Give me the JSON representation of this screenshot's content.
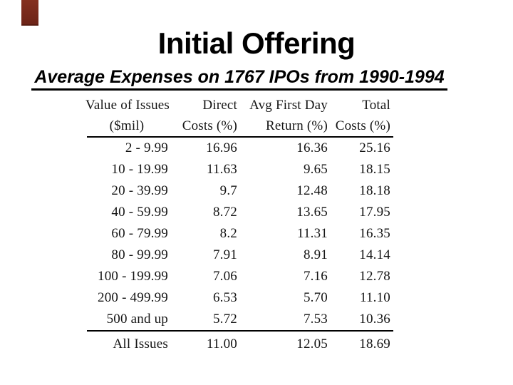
{
  "colors": {
    "background": "#ffffff",
    "accent_red": "#7b2a1c",
    "text": "#000000"
  },
  "slide": {
    "title": "Initial Offering",
    "subtitle": "Average Expenses on 1767 IPOs from 1990-1994"
  },
  "table": {
    "headers": [
      {
        "line1": "Value of Issues",
        "line2": "($mil)"
      },
      {
        "line1": "Direct",
        "line2": "Costs (%)"
      },
      {
        "line1": "Avg First Day",
        "line2": "Return (%)"
      },
      {
        "line1": "Total",
        "line2": "Costs (%)"
      }
    ],
    "rows": [
      [
        "2 - 9.99",
        "16.96",
        "16.36",
        "25.16"
      ],
      [
        "10 - 19.99",
        "11.63",
        "9.65",
        "18.15"
      ],
      [
        "20 - 39.99",
        "9.7",
        "12.48",
        "18.18"
      ],
      [
        "40 - 59.99",
        "8.72",
        "13.65",
        "17.95"
      ],
      [
        "60 - 79.99",
        "8.2",
        "11.31",
        "16.35"
      ],
      [
        "80 - 99.99",
        "7.91",
        "8.91",
        "14.14"
      ],
      [
        "100 - 199.99",
        "7.06",
        "7.16",
        "12.78"
      ],
      [
        "200 - 499.99",
        "6.53",
        "5.70",
        "11.10"
      ],
      [
        "500 and up",
        "5.72",
        "7.53",
        "10.36"
      ]
    ],
    "footer": [
      "All Issues",
      "11.00",
      "12.05",
      "18.69"
    ]
  }
}
